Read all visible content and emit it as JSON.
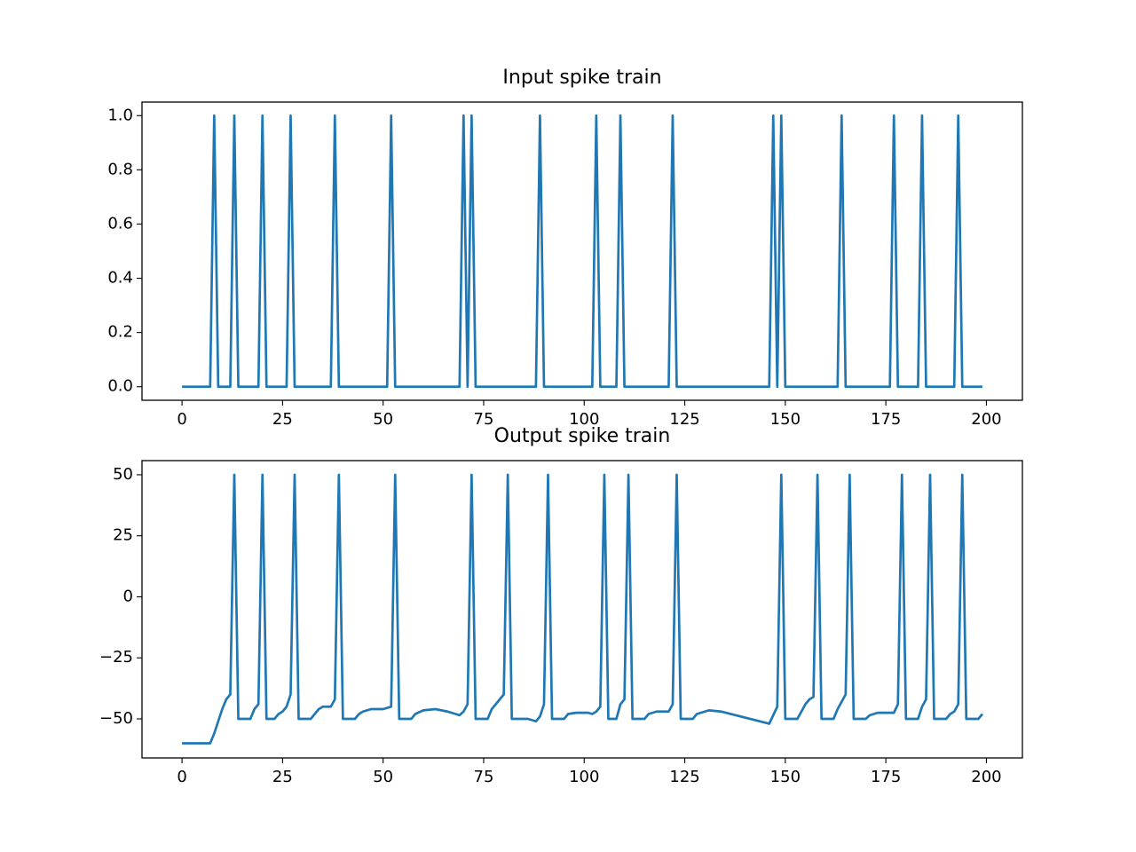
{
  "chart_data": [
    {
      "type": "line",
      "title": "Input spike train",
      "xlim": [
        -9.95,
        208.95
      ],
      "ylim": [
        -0.05,
        1.05
      ],
      "xticks": [
        0,
        25,
        50,
        75,
        100,
        125,
        150,
        175,
        200
      ],
      "yticks": [
        {
          "value": 0,
          "label": "0.0"
        },
        {
          "value": 0.2,
          "label": "0.2"
        },
        {
          "value": 0.4,
          "label": "0.4"
        },
        {
          "value": 0.6,
          "label": "0.6"
        },
        {
          "value": 0.8,
          "label": "0.8"
        },
        {
          "value": 1,
          "label": "1.0"
        }
      ],
      "series": [
        {
          "color": "#1f77b4",
          "x": [
            0,
            7,
            8,
            9,
            12,
            13,
            14,
            19,
            20,
            21,
            26,
            27,
            28,
            37,
            38,
            39,
            51,
            52,
            53,
            69,
            70,
            71,
            72,
            73,
            88,
            89,
            90,
            102,
            103,
            104,
            108,
            109,
            110,
            121,
            122,
            123,
            146,
            147,
            148,
            149,
            150,
            163,
            164,
            165,
            176,
            177,
            178,
            183,
            184,
            185,
            192,
            193,
            194,
            199
          ],
          "values": [
            0,
            0,
            1,
            0,
            0,
            1,
            0,
            0,
            1,
            0,
            0,
            1,
            0,
            0,
            1,
            0,
            0,
            1,
            0,
            0,
            1,
            0,
            1,
            0,
            0,
            1,
            0,
            0,
            1,
            0,
            0,
            1,
            0,
            0,
            1,
            0,
            0,
            1,
            0,
            1,
            0,
            0,
            1,
            0,
            0,
            1,
            0,
            0,
            1,
            0,
            0,
            1,
            0,
            0
          ]
        }
      ]
    },
    {
      "type": "line",
      "title": "Output spike train",
      "xlim": [
        -9.95,
        208.95
      ],
      "ylim": [
        -66,
        55.8
      ],
      "xticks": [
        0,
        25,
        50,
        75,
        100,
        125,
        150,
        175,
        200
      ],
      "yticks": [
        {
          "value": -50,
          "label": "−50"
        },
        {
          "value": -25,
          "label": "−25"
        },
        0,
        25,
        50
      ],
      "series": [
        {
          "color": "#1f77b4",
          "x": [
            0,
            7,
            8,
            9,
            10,
            11,
            12,
            13,
            14,
            17,
            18,
            19,
            20,
            21,
            23,
            24,
            25,
            26,
            27,
            28,
            29,
            32,
            33,
            34,
            35,
            37,
            38,
            39,
            40,
            43,
            44,
            45,
            47,
            50,
            52,
            53,
            54,
            57,
            58,
            60,
            63,
            66,
            69,
            70,
            71,
            72,
            73,
            76,
            77,
            79,
            80,
            81,
            82,
            86,
            88,
            89,
            90,
            91,
            92,
            95,
            96,
            98,
            101,
            102,
            103,
            104,
            105,
            106,
            108,
            109,
            110,
            111,
            112,
            115,
            116,
            118,
            121,
            122,
            123,
            124,
            127,
            128,
            131,
            134,
            140,
            146,
            148,
            149,
            150,
            153,
            154,
            155,
            156,
            157,
            158,
            159,
            162,
            163,
            165,
            166,
            167,
            170,
            171,
            173,
            177,
            178,
            179,
            180,
            183,
            184,
            185,
            186,
            187,
            190,
            191,
            192,
            193,
            194,
            195,
            198,
            199
          ],
          "values": [
            -60,
            -60,
            -56,
            -51,
            -46,
            -42,
            -40,
            50,
            -50,
            -50,
            -46,
            -44,
            50,
            -50,
            -50,
            -48,
            -47,
            -45,
            -40,
            50,
            -50,
            -50,
            -48,
            -46,
            -45,
            -45,
            -42,
            50,
            -50,
            -50,
            -48,
            -47,
            -46,
            -46,
            -45,
            50,
            -50,
            -50,
            -48,
            -46.5,
            -46,
            -47,
            -48.5,
            -47,
            -44,
            50,
            -50,
            -50,
            -46,
            -42,
            -40,
            50,
            -50,
            -50,
            -51,
            -49,
            -44,
            50,
            -50,
            -50,
            -48,
            -47.5,
            -47.5,
            -48,
            -47,
            -45,
            50,
            -50,
            -50,
            -44,
            -42,
            50,
            -50,
            -50,
            -48,
            -47,
            -47,
            -44,
            50,
            -50,
            -50,
            -48,
            -46.5,
            -47,
            -49.5,
            -52,
            -45,
            50,
            -50,
            -50,
            -47,
            -44,
            -42,
            -41,
            50,
            -50,
            -50,
            -46,
            -40,
            50,
            -50,
            -50,
            -48.5,
            -47.5,
            -47.5,
            -44,
            50,
            -50,
            -50,
            -45,
            -42,
            50,
            -50,
            -50,
            -48,
            -47,
            -44,
            50,
            -50,
            -50,
            -48
          ]
        }
      ]
    }
  ]
}
